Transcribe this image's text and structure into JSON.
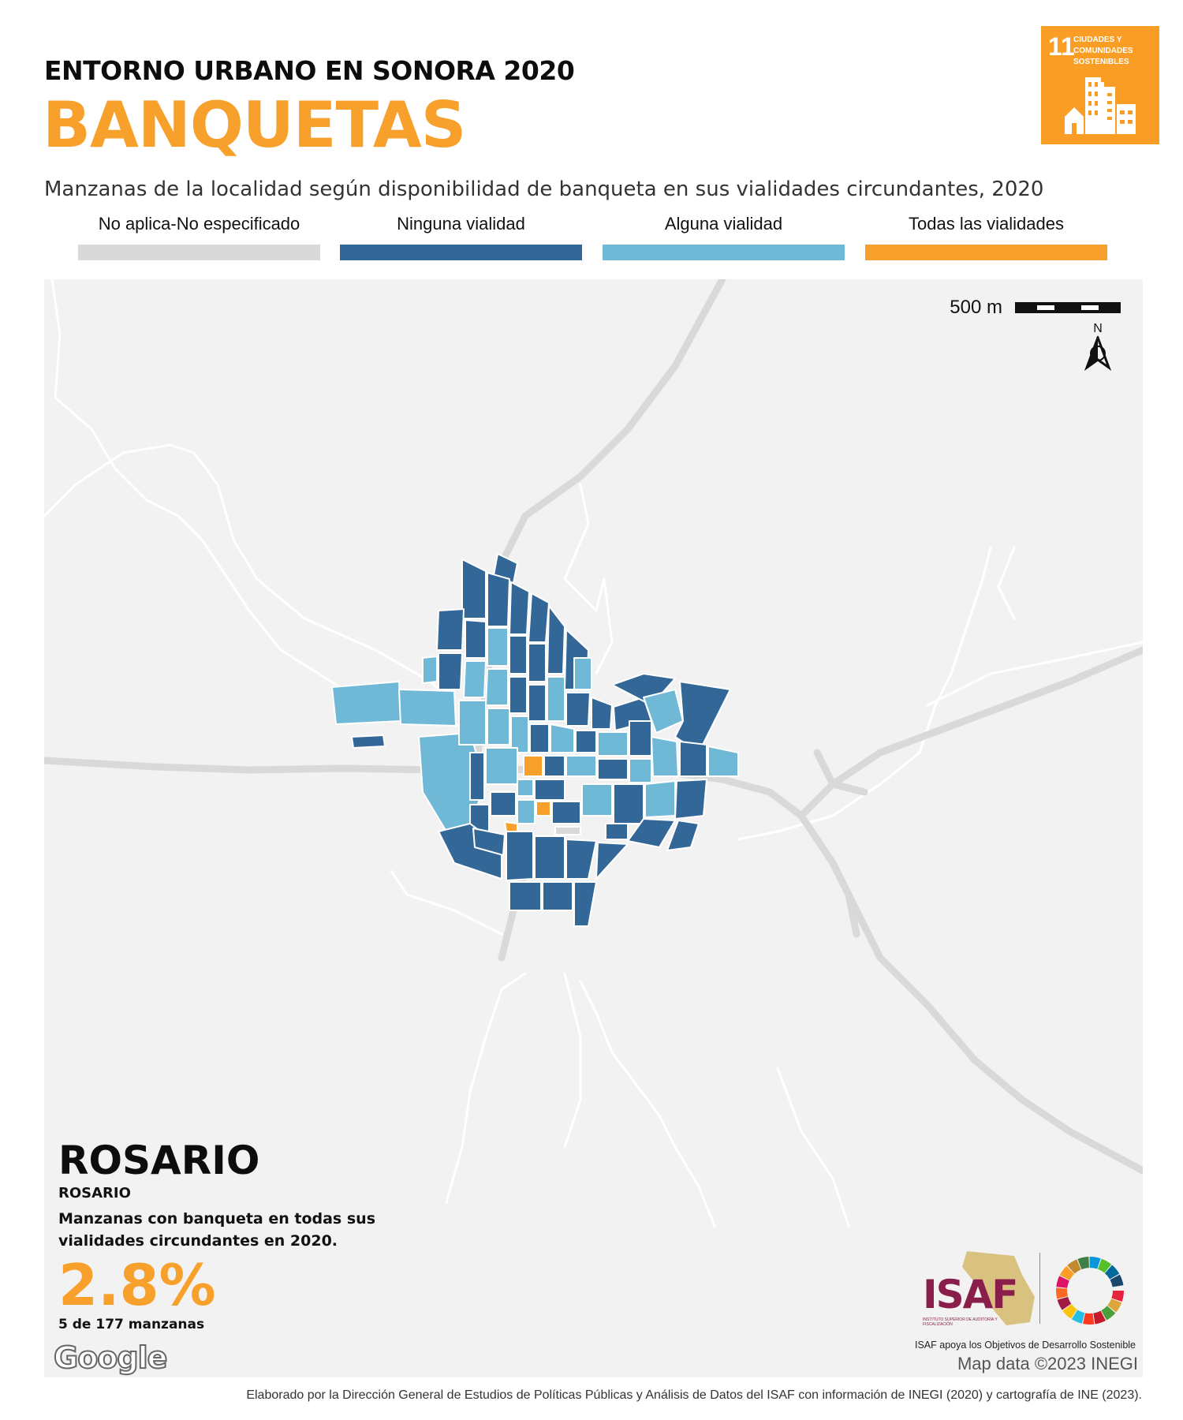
{
  "header": {
    "supertitle": "ENTORNO URBANO EN SONORA 2020",
    "title": "BANQUETAS",
    "subtitle": "Manzanas de la localidad según disponibilidad de banqueta en sus vialidades circundantes, 2020"
  },
  "sdg_badge": {
    "number": "11",
    "label": "CIUDADES Y COMUNIDADES SOSTENIBLES",
    "color": "#f99d25",
    "icon": "city-buildings-icon"
  },
  "legend": [
    {
      "label": "No aplica-No especificado",
      "color": "#d9d9d9"
    },
    {
      "label": "Ninguna vialidad",
      "color": "#336797"
    },
    {
      "label": "Alguna vialidad",
      "color": "#6fb8d6"
    },
    {
      "label": "Todas las vialidades",
      "color": "#f7a02c"
    }
  ],
  "map": {
    "scale_label": "500 m",
    "north_label": "N",
    "attribution": "Map data ©2023 INEGI",
    "provider": "Google"
  },
  "place": {
    "name": "ROSARIO",
    "municipality": "ROSARIO",
    "description": "Manzanas con banqueta en todas sus vialidades circundantes en 2020.",
    "percent": "2.8%",
    "count": "5 de 177 manzanas"
  },
  "logos": {
    "isaf": "ISAF",
    "isaf_subtitle": "INSTITUTO SUPERIOR DE AUDITORÍA Y FISCALIZACIÓN",
    "note": "ISAF apoya los Objetivos de Desarrollo Sostenible"
  },
  "footer": {
    "credit": "Elaborado por la Dirección General de Estudios de Políticas Públicas y Análisis de Datos del ISAF con información de INEGI (2020) y cartografía de INE (2023)."
  }
}
